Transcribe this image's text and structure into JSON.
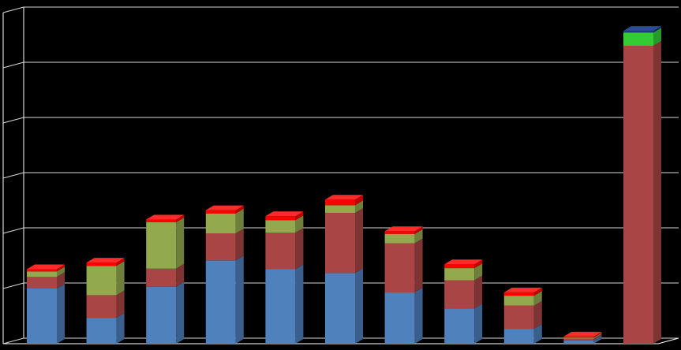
{
  "chart_data": {
    "type": "bar",
    "stacked": true,
    "three_d": true,
    "title": "",
    "xlabel": "",
    "ylabel": "",
    "ylim": [
      0,
      6
    ],
    "grid": true,
    "legend": "none",
    "categories": [
      "",
      "",
      "",
      "",
      "",
      "",
      "",
      "",
      "",
      "",
      ""
    ],
    "series": [
      {
        "color": "#4F81BD",
        "side_color": "#3A5F8C",
        "top_color": "#6A97CF",
        "values": [
          1.0,
          0.47,
          1.03,
          1.51,
          1.35,
          1.28,
          0.93,
          0.64,
          0.27,
          0.06,
          0
        ]
      },
      {
        "color": "#A94645",
        "side_color": "#7E3433",
        "top_color": "#C25A59",
        "values": [
          0.21,
          0.41,
          0.33,
          0.49,
          0.66,
          1.09,
          0.89,
          0.51,
          0.42,
          0.03,
          5.4
        ]
      },
      {
        "color": "#92A94E",
        "side_color": "#6D7F3A",
        "top_color": "#A8C060",
        "values": [
          0.1,
          0.53,
          0.84,
          0.36,
          0.23,
          0.14,
          0.17,
          0.22,
          0.18,
          0.02,
          0
        ]
      },
      {
        "color": "#FF0000",
        "side_color": "#C00000",
        "top_color": "#FF2A2A",
        "values": [
          0.04,
          0.06,
          0.05,
          0.06,
          0.07,
          0.1,
          0.05,
          0.07,
          0.06,
          0.02,
          0
        ]
      },
      {
        "color": "#33CC33",
        "side_color": "#25992A",
        "top_color": "#4CE04C",
        "values": [
          0,
          0,
          0,
          0,
          0,
          0,
          0,
          0,
          0,
          0,
          0.24
        ]
      },
      {
        "color": "#1F3A78",
        "side_color": "#152A58",
        "top_color": "#2C4C96",
        "values": [
          0,
          0,
          0,
          0,
          0,
          0,
          0,
          0,
          0,
          0,
          0.03
        ]
      }
    ]
  }
}
